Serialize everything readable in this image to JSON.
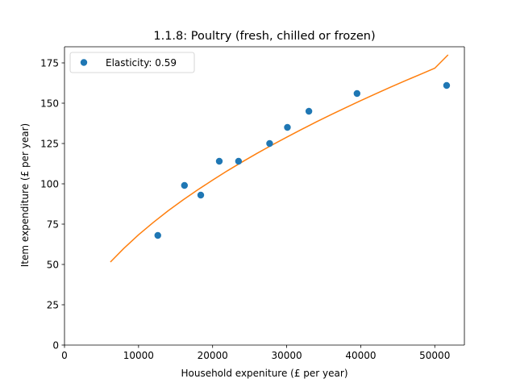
{
  "chart_data": {
    "type": "scatter",
    "title": "1.1.8: Poultry (fresh, chilled or frozen)",
    "xlabel": "Household expeniture (£ per year)",
    "ylabel": "Item expenditure (£ per year)",
    "xlim": [
      0,
      54000
    ],
    "ylim": [
      0,
      185
    ],
    "xticks": [
      0,
      10000,
      20000,
      30000,
      40000,
      50000
    ],
    "xtick_labels": [
      "0",
      "10000",
      "20000",
      "30000",
      "40000",
      "50000"
    ],
    "yticks": [
      0,
      25,
      50,
      75,
      100,
      125,
      150,
      175
    ],
    "ytick_labels": [
      "0",
      "25",
      "50",
      "75",
      "100",
      "125",
      "150",
      "175"
    ],
    "grid": false,
    "legend_position": "top-left",
    "series": [
      {
        "name": "Elasticity: 0.59",
        "kind": "points",
        "color": "#1f77b4",
        "x": [
          12600,
          16200,
          18400,
          20900,
          23500,
          27700,
          30100,
          33000,
          39500,
          51600
        ],
        "y": [
          68,
          99,
          93,
          114,
          114,
          125,
          135,
          145,
          156,
          161
        ]
      },
      {
        "kind": "line",
        "color": "#ff7f0e",
        "x": [
          6200,
          8000,
          10000,
          12000,
          14000,
          16000,
          18000,
          20000,
          22000,
          24000,
          26000,
          28000,
          30000,
          32000,
          34000,
          36000,
          38000,
          40000,
          42000,
          44000,
          46000,
          48000,
          50000,
          51800
        ],
        "y": [
          51.5,
          59.9,
          68.4,
          76.1,
          83.3,
          90.0,
          96.3,
          102.3,
          108.1,
          113.6,
          118.9,
          124.0,
          128.9,
          133.7,
          138.4,
          142.9,
          147.3,
          151.6,
          155.8,
          159.9,
          163.9,
          167.8,
          171.7,
          180.0
        ]
      }
    ]
  }
}
